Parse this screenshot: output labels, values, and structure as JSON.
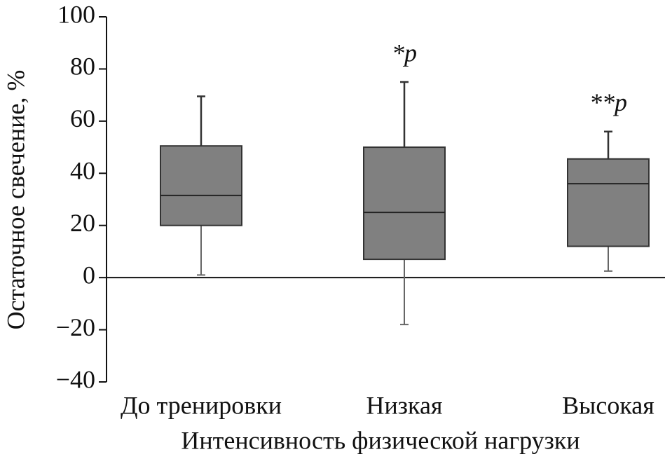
{
  "chart_data": {
    "type": "box",
    "y_label": "Остаточное свечение, %",
    "x_label": "Интенсивность физической нагрузки",
    "categories": [
      "До тренировки",
      "Низкая",
      "Высокая"
    ],
    "values": [
      {
        "min": 1,
        "q1": 20,
        "median": 31.5,
        "q3": 50.5,
        "max": 69.5
      },
      {
        "min": -18,
        "q1": 7,
        "median": 25,
        "q3": 50,
        "max": 75
      },
      {
        "min": 2.5,
        "q1": 12,
        "median": 36,
        "q3": 45.5,
        "max": 56
      }
    ],
    "annotations": [
      null,
      "*p",
      "**p"
    ],
    "color": "#808080",
    "ylim": [
      -40,
      100
    ],
    "yticks": [
      {
        "value": -40,
        "label": "−40"
      },
      {
        "value": -20,
        "label": "−20"
      },
      0,
      20,
      40,
      60,
      80,
      100
    ]
  }
}
